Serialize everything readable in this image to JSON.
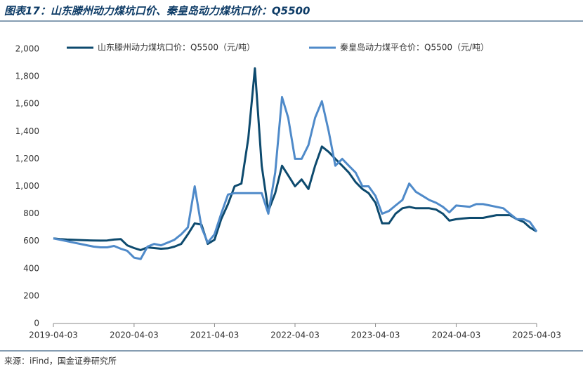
{
  "chart_data": {
    "type": "line",
    "title": "图表17：山东滕州动力煤坑口价、秦皇岛动力煤坑口价：Q5500",
    "source": "来源：iFind，国金证券研究所",
    "x": [
      "2019-04-03",
      "2019-05-03",
      "2019-06-03",
      "2019-07-03",
      "2019-08-03",
      "2019-09-03",
      "2019-10-03",
      "2019-11-03",
      "2019-12-03",
      "2020-01-03",
      "2020-02-03",
      "2020-03-03",
      "2020-04-03",
      "2020-05-03",
      "2020-06-03",
      "2020-07-03",
      "2020-08-03",
      "2020-09-03",
      "2020-10-03",
      "2020-11-03",
      "2020-12-03",
      "2021-01-03",
      "2021-02-03",
      "2021-03-03",
      "2021-04-03",
      "2021-05-03",
      "2021-06-03",
      "2021-07-03",
      "2021-08-03",
      "2021-09-03",
      "2021-10-03",
      "2021-11-03",
      "2021-12-03",
      "2022-01-03",
      "2022-02-03",
      "2022-03-03",
      "2022-04-03",
      "2022-05-03",
      "2022-06-03",
      "2022-07-03",
      "2022-08-03",
      "2022-09-03",
      "2022-10-03",
      "2022-11-03",
      "2022-12-03",
      "2023-01-03",
      "2023-02-03",
      "2023-03-03",
      "2023-04-03",
      "2023-05-03",
      "2023-06-03",
      "2023-07-03",
      "2023-08-03",
      "2023-09-03",
      "2023-10-03",
      "2023-11-03",
      "2023-12-03",
      "2024-01-03",
      "2024-02-03",
      "2024-03-03",
      "2024-04-03",
      "2024-05-03",
      "2024-06-03",
      "2024-07-03",
      "2024-08-03",
      "2024-09-03",
      "2024-10-03",
      "2024-11-03",
      "2024-12-03",
      "2025-01-03",
      "2025-02-03",
      "2025-03-03",
      "2025-04-03"
    ],
    "series": [
      {
        "name": "山东滕州动力煤坑口价：Q5500（元/吨）",
        "color": "#0d4a6e",
        "values": [
          620,
          615,
          612,
          610,
          608,
          606,
          605,
          604,
          605,
          612,
          615,
          570,
          550,
          535,
          555,
          550,
          545,
          548,
          560,
          580,
          650,
          730,
          720,
          580,
          610,
          760,
          870,
          1000,
          1020,
          1350,
          1860,
          1150,
          820,
          950,
          1150,
          1080,
          1000,
          1050,
          980,
          1150,
          1290,
          1250,
          1200,
          1150,
          1100,
          1030,
          980,
          950,
          880,
          730,
          730,
          800,
          840,
          850,
          840,
          840,
          840,
          830,
          800,
          750,
          760,
          765,
          770,
          770,
          770,
          780,
          790,
          790,
          790,
          760,
          740,
          700,
          670
        ]
      },
      {
        "name": "秦皇岛动力煤平仓价：Q5500（元/吨）",
        "color": "#4f8ac9",
        "values": [
          620,
          610,
          600,
          590,
          580,
          570,
          560,
          555,
          555,
          565,
          545,
          530,
          480,
          470,
          560,
          580,
          570,
          590,
          610,
          650,
          700,
          1000,
          700,
          590,
          650,
          800,
          940,
          950,
          950,
          950,
          950,
          950,
          800,
          1100,
          1650,
          1500,
          1200,
          1200,
          1300,
          1500,
          1620,
          1400,
          1150,
          1200,
          1150,
          1100,
          1000,
          1000,
          930,
          800,
          820,
          860,
          900,
          1020,
          960,
          930,
          900,
          880,
          850,
          810,
          860,
          855,
          850,
          870,
          870,
          860,
          850,
          840,
          800,
          760,
          760,
          740,
          670
        ]
      }
    ],
    "xlim": [
      "2019-04-03",
      "2025-04-03"
    ],
    "xticks": [
      "2019-04-03",
      "2020-04-03",
      "2021-04-03",
      "2022-04-03",
      "2023-04-03",
      "2024-04-03",
      "2025-04-03"
    ],
    "ylim": [
      0,
      2000
    ],
    "yticks": [
      0,
      200,
      400,
      600,
      800,
      {
        "value": 1000,
        "label": "1,000"
      },
      {
        "value": 1200,
        "label": "1,200"
      },
      {
        "value": 1400,
        "label": "1,400"
      },
      {
        "value": 1600,
        "label": "1,600"
      },
      {
        "value": 1800,
        "label": "1,800"
      },
      {
        "value": 2000,
        "label": "2,000"
      }
    ],
    "legend": "top"
  }
}
